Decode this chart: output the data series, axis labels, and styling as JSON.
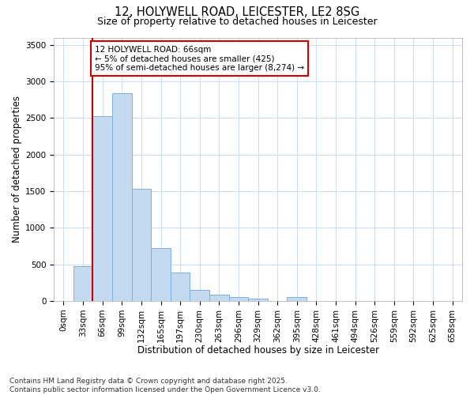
{
  "title_line1": "12, HOLYWELL ROAD, LEICESTER, LE2 8SG",
  "title_line2": "Size of property relative to detached houses in Leicester",
  "xlabel": "Distribution of detached houses by size in Leicester",
  "ylabel": "Number of detached properties",
  "bar_values": [
    0,
    470,
    2530,
    2840,
    1530,
    720,
    390,
    155,
    90,
    55,
    35,
    0,
    55,
    0,
    0,
    0,
    0,
    0,
    0,
    0,
    0
  ],
  "bar_labels": [
    "0sqm",
    "33sqm",
    "66sqm",
    "99sqm",
    "132sqm",
    "165sqm",
    "197sqm",
    "230sqm",
    "263sqm",
    "296sqm",
    "329sqm",
    "362sqm",
    "395sqm",
    "428sqm",
    "461sqm",
    "494sqm",
    "526sqm",
    "559sqm",
    "592sqm",
    "625sqm",
    "658sqm"
  ],
  "bar_color": "#c5d9f1",
  "bar_edge_color": "#7ab0e0",
  "background_color": "#ffffff",
  "plot_bg_color": "#ffffff",
  "grid_color": "#d0dff0",
  "vline_color": "#cc0000",
  "ylim": [
    0,
    3600
  ],
  "yticks": [
    0,
    500,
    1000,
    1500,
    2000,
    2500,
    3000,
    3500
  ],
  "annotation_text": "12 HOLYWELL ROAD: 66sqm\n← 5% of detached houses are smaller (425)\n95% of semi-detached houses are larger (8,274) →",
  "annotation_box_color": "#ffffff",
  "annotation_box_edge": "#cc0000",
  "footnote": "Contains HM Land Registry data © Crown copyright and database right 2025.\nContains public sector information licensed under the Open Government Licence v3.0.",
  "title_fontsize": 10.5,
  "subtitle_fontsize": 9,
  "axis_label_fontsize": 8.5,
  "tick_fontsize": 7.5,
  "annotation_fontsize": 7.5,
  "footnote_fontsize": 6.5
}
